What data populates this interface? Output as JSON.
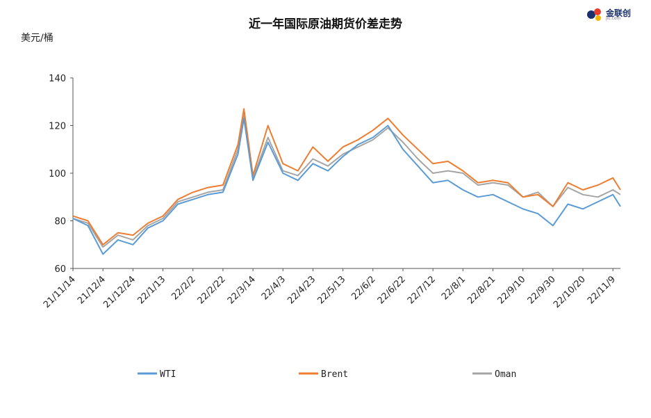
{
  "chart_data": {
    "type": "line",
    "title": "近一年国际原油期货价差走势",
    "ylabel": "美元/桶",
    "ylim": [
      60,
      140
    ],
    "yticks": [
      60,
      80,
      100,
      120,
      140
    ],
    "xticks": [
      "21/11/14",
      "21/12/4",
      "21/12/24",
      "22/1/13",
      "22/2/2",
      "22/2/22",
      "22/3/14",
      "22/4/3",
      "22/4/23",
      "22/5/13",
      "22/6/2",
      "22/6/22",
      "22/7/12",
      "22/8/1",
      "22/8/21",
      "22/9/10",
      "22/9/30",
      "22/10/20",
      "22/11/9"
    ],
    "x": [
      "21/11/14",
      "21/11/24",
      "21/12/4",
      "21/12/14",
      "21/12/24",
      "22/1/3",
      "22/1/13",
      "22/1/23",
      "22/2/2",
      "22/2/12",
      "22/2/22",
      "22/3/4",
      "22/3/8",
      "22/3/14",
      "22/3/24",
      "22/4/3",
      "22/4/13",
      "22/4/23",
      "22/5/3",
      "22/5/13",
      "22/5/23",
      "22/6/2",
      "22/6/12",
      "22/6/22",
      "22/7/2",
      "22/7/12",
      "22/7/22",
      "22/8/1",
      "22/8/11",
      "22/8/21",
      "22/8/31",
      "22/9/10",
      "22/9/20",
      "22/9/30",
      "22/10/10",
      "22/10/20",
      "22/10/30",
      "22/11/9",
      "22/11/14"
    ],
    "series": [
      {
        "name": "WTI",
        "color": "#5b9bd5",
        "values": [
          81,
          78,
          66,
          72,
          70,
          77,
          80,
          87,
          89,
          91,
          92,
          108,
          123,
          97,
          113,
          100,
          97,
          104,
          101,
          107,
          112,
          115,
          120,
          110,
          103,
          96,
          97,
          93,
          90,
          91,
          88,
          85,
          83,
          78,
          87,
          85,
          88,
          91,
          86
        ]
      },
      {
        "name": "Brent",
        "color": "#ed7d31",
        "values": [
          82,
          80,
          70,
          75,
          74,
          79,
          82,
          89,
          92,
          94,
          95,
          112,
          127,
          99,
          120,
          104,
          101,
          111,
          105,
          111,
          114,
          118,
          123,
          116,
          110,
          104,
          105,
          101,
          96,
          97,
          96,
          90,
          91,
          86,
          96,
          93,
          95,
          98,
          93
        ]
      },
      {
        "name": "Oman",
        "color": "#a5a5a5",
        "values": [
          81,
          79,
          69,
          74,
          72,
          78,
          81,
          88,
          90,
          92,
          93,
          110,
          125,
          98,
          115,
          101,
          99,
          106,
          103,
          108,
          111,
          114,
          119,
          113,
          106,
          100,
          101,
          100,
          95,
          96,
          95,
          90,
          92,
          86,
          94,
          91,
          90,
          93,
          91
        ]
      }
    ],
    "legend_position": "bottom",
    "grid": false
  },
  "logo": {
    "text": "金联创",
    "sub": "jlc.com"
  }
}
